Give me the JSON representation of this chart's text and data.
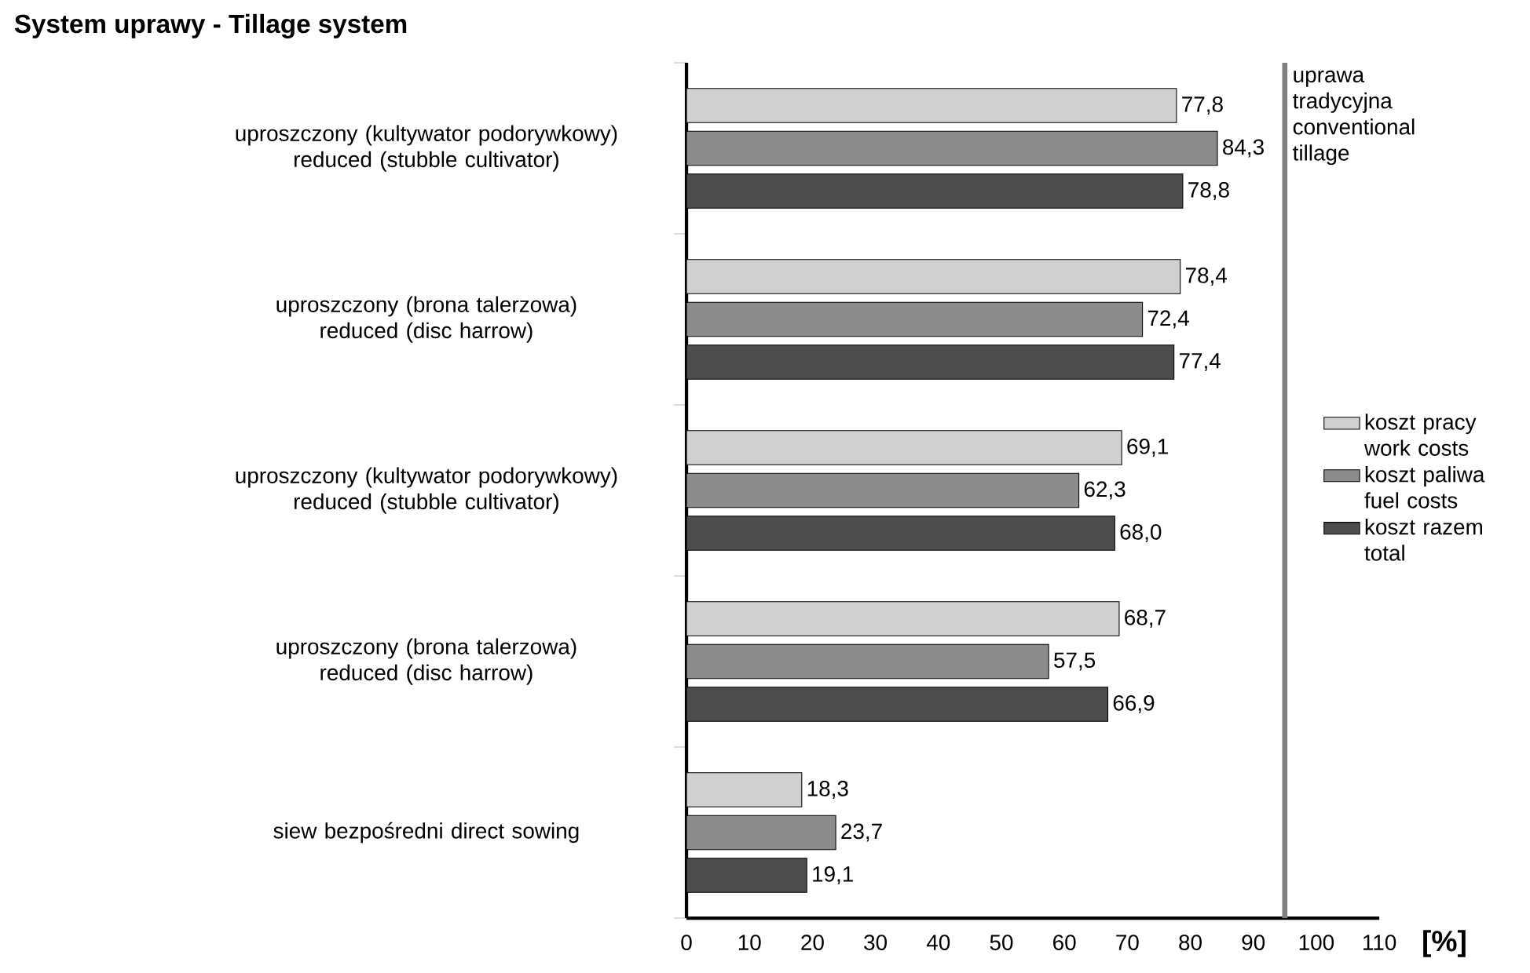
{
  "chart_data": {
    "type": "bar",
    "orientation": "horizontal",
    "title": "System uprawy - Tillage system",
    "xlabel": "[%]",
    "categories": [
      "uproszczony (kultywator podorywkowy) reduced (stubble cultivator)",
      "uproszczony (brona talerzowa) reduced (disc harrow)",
      "uproszczony (kultywator  podorywkowy) reduced (stubble cultivator)",
      "uproszczony (brona talerzowa) reduced (disc harrow)",
      "siew bezpośredni direct sowing"
    ],
    "series": [
      {
        "name": "koszt pracy work costs",
        "color": "#d0d0d0",
        "values": [
          77.8,
          78.4,
          69.1,
          68.7,
          18.3
        ],
        "value_labels": [
          "77,8",
          "78,4",
          "69,1",
          "68,7",
          "18,3"
        ]
      },
      {
        "name": "koszt paliwa fuel costs",
        "color": "#8c8c8c",
        "values": [
          84.3,
          72.4,
          62.3,
          57.5,
          23.7
        ],
        "value_labels": [
          "84,3",
          "72,4",
          "62,3",
          "57,5",
          "23,7"
        ]
      },
      {
        "name": "koszt razem total",
        "color": "#4d4d4d",
        "values": [
          78.8,
          77.4,
          68.0,
          66.9,
          19.1
        ],
        "value_labels": [
          "78,8",
          "77,4",
          "68,0",
          "66,9",
          "19,1"
        ]
      }
    ],
    "xlim": [
      0,
      110
    ],
    "xticks": [
      0,
      10,
      20,
      30,
      40,
      50,
      60,
      70,
      80,
      90,
      100,
      110
    ],
    "ref_lines": [
      {
        "axis": "x",
        "value": 95,
        "label": "uprawa tradycyjna conventional tillage",
        "color": "#808080"
      }
    ],
    "legend": "right",
    "grid": false
  }
}
